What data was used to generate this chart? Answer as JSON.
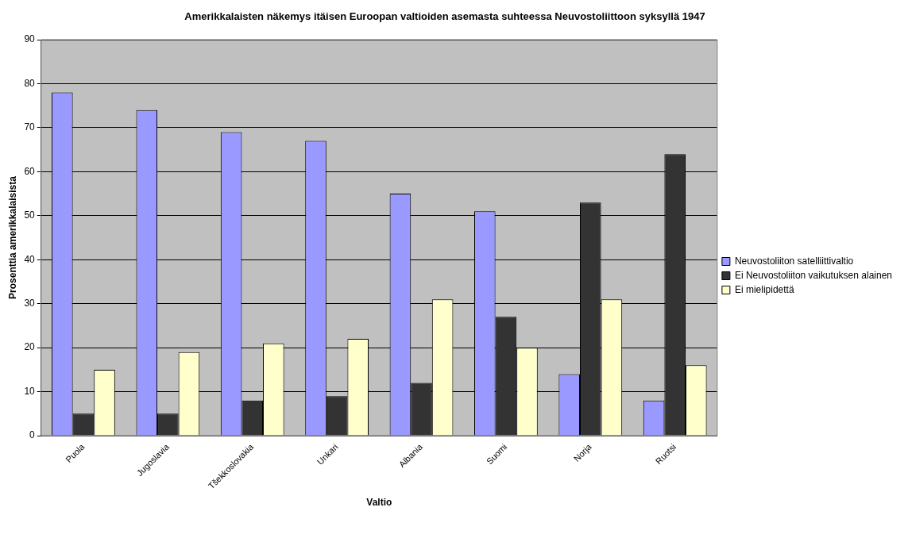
{
  "chart_data": {
    "type": "bar",
    "title": "Amerikkalaisten näkemys itäisen Euroopan valtioiden asemasta suhteessa Neuvostoliittoon syksyllä 1947",
    "xlabel": "Valtio",
    "ylabel": "Prosenttia amerikkalaisista",
    "categories": [
      "Puola",
      "Jugoslavia",
      "Tšekkoslovakia",
      "Unkari",
      "Albania",
      "Suomi",
      "Norja",
      "Ruotsi"
    ],
    "series": [
      {
        "name": "Neuvostoliiton satelliittivaltio",
        "color": "#9999ff",
        "values": [
          78,
          74,
          69,
          67,
          55,
          51,
          14,
          8
        ]
      },
      {
        "name": "Ei Neuvostoliiton vaikutuksen alainen",
        "color": "#333333",
        "values": [
          5,
          5,
          8,
          9,
          12,
          27,
          53,
          64
        ]
      },
      {
        "name": "Ei mielipidettä",
        "color": "#ffffcc",
        "values": [
          15,
          19,
          21,
          22,
          31,
          20,
          31,
          16
        ]
      }
    ],
    "ylim": [
      0,
      90
    ],
    "yticks": [
      0,
      10,
      20,
      30,
      40,
      50,
      60,
      70,
      80,
      90
    ],
    "grid": "y",
    "legend": "right"
  }
}
